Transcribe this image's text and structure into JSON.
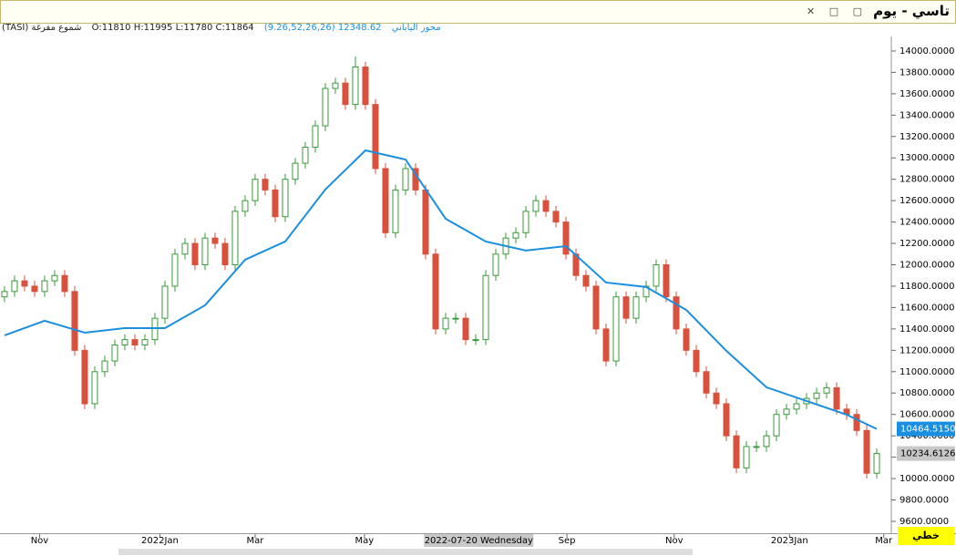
{
  "chart_data": {
    "type": "candlestick",
    "title": "تاسي - يوم",
    "legend_name": "(TASI) شموع مفرغة",
    "ohlc_text": "O:11810 H:11995 L:11780 C:11864",
    "ma_name": "(9.26,52,26,26) محور الياباني",
    "ma_text": "12348.62",
    "mode_label": "خطي",
    "up_color": "#3a9a3a",
    "down_color": "#d9503c",
    "ma_color": "#1a8fe0",
    "xlim": [
      -0.45,
      88.27
    ],
    "ylim": [
      9489,
      14136
    ],
    "xticks": [
      {
        "value": 3.5,
        "label": "Nov"
      },
      {
        "value": 15.5,
        "label": "2022Jan"
      },
      {
        "value": 25,
        "label": "Mar"
      },
      {
        "value": 35.9,
        "label": "May"
      },
      {
        "value": 56.1,
        "label": "Sep"
      },
      {
        "value": 66.8,
        "label": "Nov"
      },
      {
        "value": 78.3,
        "label": "2023Jan"
      },
      {
        "value": 87.7,
        "label": "Mar"
      }
    ],
    "crosshair": {
      "value": 47.3,
      "label": "2022-07-20 Wednesday"
    },
    "yticks": [
      {
        "value": 9600,
        "label": "9600.0000"
      },
      {
        "value": 9800,
        "label": "9800.0000"
      },
      {
        "value": 10000,
        "label": "10000.0000"
      },
      {
        "value": 10200,
        "label": "10200.0000"
      },
      {
        "value": 10400,
        "label": "10400.0000"
      },
      {
        "value": 10600,
        "label": "10600.0000"
      },
      {
        "value": 10800,
        "label": "10800.0000"
      },
      {
        "value": 11000,
        "label": "11000.0000"
      },
      {
        "value": 11200,
        "label": "11200.0000"
      },
      {
        "value": 11400,
        "label": "11400.0000"
      },
      {
        "value": 11600,
        "label": "11600.0000"
      },
      {
        "value": 11800,
        "label": "11800.0000"
      },
      {
        "value": 12000,
        "label": "12000.0000"
      },
      {
        "value": 12200,
        "label": "12200.0000"
      },
      {
        "value": 12400,
        "label": "12400.0000"
      },
      {
        "value": 12600,
        "label": "12600.0000"
      },
      {
        "value": 12800,
        "label": "12800.0000"
      },
      {
        "value": 13000,
        "label": "13000.0000"
      },
      {
        "value": 13200,
        "label": "13200.0000"
      },
      {
        "value": 13400,
        "label": "13400.0000"
      },
      {
        "value": 13600,
        "label": "13600.0000"
      },
      {
        "value": 13800,
        "label": "13800.0000"
      },
      {
        "value": 14000,
        "label": "14000.0000"
      }
    ],
    "open": [
      11700,
      11750,
      11850,
      11800,
      11750,
      11850,
      11900,
      11750,
      11200,
      10700,
      11000,
      11100,
      11250,
      11300,
      11250,
      11300,
      11500,
      11800,
      12100,
      12200,
      12000,
      12250,
      12200,
      12000,
      12500,
      12600,
      12800,
      12700,
      12450,
      12800,
      12950,
      13100,
      13300,
      13650,
      13700,
      13500,
      13850,
      13500,
      12900,
      12300,
      12700,
      12900,
      12700,
      12100,
      11400,
      11500,
      11500,
      11300,
      11300,
      11900,
      12100,
      12250,
      12300,
      12500,
      12600,
      12500,
      12400,
      12100,
      11900,
      11800,
      11400,
      11100,
      11700,
      11500,
      11700,
      11800,
      12000,
      11700,
      11400,
      11200,
      11000,
      10800,
      10700,
      10400,
      10100,
      10300,
      10300,
      10400,
      10600,
      10650,
      10700,
      10750,
      10800,
      10850,
      10650,
      10600,
      10450,
      10050
    ],
    "high": [
      11800,
      11900,
      11900,
      11850,
      11900,
      11950,
      11950,
      11800,
      11250,
      11050,
      11150,
      11300,
      11350,
      11350,
      11350,
      11550,
      11850,
      12150,
      12250,
      12250,
      12300,
      12300,
      12250,
      12550,
      12650,
      12850,
      12850,
      12750,
      12850,
      13000,
      13150,
      13350,
      13700,
      13750,
      13750,
      13950,
      13900,
      13550,
      12950,
      12750,
      12950,
      12950,
      12750,
      12150,
      11550,
      11550,
      11550,
      11350,
      11950,
      12150,
      12300,
      12350,
      12550,
      12650,
      12650,
      12550,
      12450,
      12150,
      11950,
      11850,
      11450,
      11750,
      11750,
      11750,
      11850,
      12050,
      12050,
      11750,
      11450,
      11250,
      11050,
      10850,
      10750,
      10450,
      10350,
      10350,
      10450,
      10650,
      10700,
      10750,
      10800,
      10850,
      10900,
      10900,
      10700,
      10650,
      10500,
      10284
    ],
    "low": [
      11650,
      11700,
      11750,
      11700,
      11700,
      11800,
      11700,
      11150,
      10650,
      10650,
      10950,
      11050,
      11200,
      11200,
      11200,
      11250,
      11450,
      11750,
      12050,
      11950,
      11950,
      12150,
      11950,
      11950,
      12450,
      12550,
      12650,
      12400,
      12400,
      12750,
      12900,
      13050,
      13250,
      13600,
      13450,
      13450,
      13450,
      12850,
      12250,
      12250,
      12650,
      12650,
      12050,
      11350,
      11350,
      11450,
      11250,
      11250,
      11250,
      11850,
      12050,
      12200,
      12250,
      12450,
      12450,
      12350,
      12050,
      11850,
      11750,
      11350,
      11050,
      11050,
      11450,
      11450,
      11650,
      11750,
      11650,
      11350,
      11150,
      10950,
      10750,
      10650,
      10350,
      10050,
      10050,
      10250,
      10250,
      10350,
      10550,
      10600,
      10650,
      10700,
      10750,
      10600,
      10550,
      10400,
      10000,
      10000
    ],
    "close": [
      11750,
      11850,
      11800,
      11750,
      11850,
      11900,
      11750,
      11200,
      10700,
      11000,
      11100,
      11250,
      11300,
      11250,
      11300,
      11500,
      11800,
      12100,
      12200,
      12000,
      12250,
      12200,
      12000,
      12500,
      12600,
      12800,
      12700,
      12450,
      12800,
      12950,
      13100,
      13300,
      13650,
      13700,
      13500,
      13850,
      13500,
      12900,
      12300,
      12700,
      12900,
      12700,
      12100,
      11400,
      11500,
      11500,
      11300,
      11300,
      11900,
      12100,
      12250,
      12300,
      12500,
      12600,
      12500,
      12400,
      12100,
      11900,
      11800,
      11400,
      11100,
      11700,
      11500,
      11700,
      11800,
      12000,
      11700,
      11400,
      11200,
      11000,
      10800,
      10700,
      10400,
      10100,
      10300,
      10300,
      10400,
      10600,
      10650,
      10700,
      10750,
      10800,
      10850,
      10650,
      10600,
      10450,
      10050,
      10234
    ],
    "ma": {
      "x": [
        0,
        4,
        8,
        12,
        16,
        20,
        24,
        28,
        32,
        36,
        40,
        44,
        48,
        52,
        56,
        60,
        64,
        68,
        72,
        76,
        80,
        84,
        87
      ],
      "values": [
        11340,
        11476,
        11365,
        11408,
        11408,
        11621,
        12047,
        12218,
        12704,
        13070,
        12985,
        12431,
        12218,
        12133,
        12175,
        11834,
        11792,
        11578,
        11195,
        10854,
        10726,
        10598,
        10464.515
      ]
    },
    "ma_last": {
      "value": 10464.515,
      "label": "10464.5150"
    },
    "last_price": {
      "value": 10234.6126,
      "label": "10234.6126"
    }
  }
}
